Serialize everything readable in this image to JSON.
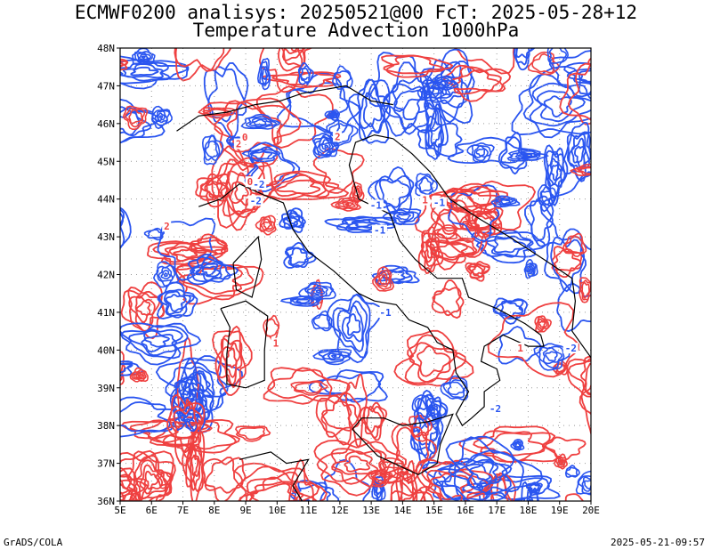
{
  "title": {
    "line1": "ECMWF0200 analisys: 20250521@00 FcT: 2025-05-28+12",
    "line2": "Temperature Advection 1000hPa"
  },
  "map": {
    "lat_labels": [
      "48N",
      "47N",
      "46N",
      "45N",
      "44N",
      "43N",
      "42N",
      "41N",
      "40N",
      "39N",
      "38N",
      "37N",
      "36N"
    ],
    "lon_labels": [
      "5E",
      "6E",
      "7E",
      "8E",
      "9E",
      "10E",
      "11E",
      "12E",
      "13E",
      "14E",
      "15E",
      "16E",
      "17E",
      "18E",
      "19E",
      "20E"
    ],
    "lat_range": [
      36,
      48
    ],
    "lon_range": [
      5,
      20
    ],
    "grid": "dotted",
    "contour_colors": {
      "positive": "#ef4040",
      "negative": "#2a55f0",
      "grid": "#999999",
      "coast": "#000000"
    },
    "contour_labels": [
      "-1",
      "-2",
      "-1",
      "-2",
      "1",
      "2",
      "0",
      "1",
      "2",
      "-1",
      "-2",
      "1",
      "-1",
      "2",
      "-2",
      "0"
    ]
  },
  "footer": {
    "left": "GrADS/COLA",
    "right": "2025-05-21-09:57"
  }
}
